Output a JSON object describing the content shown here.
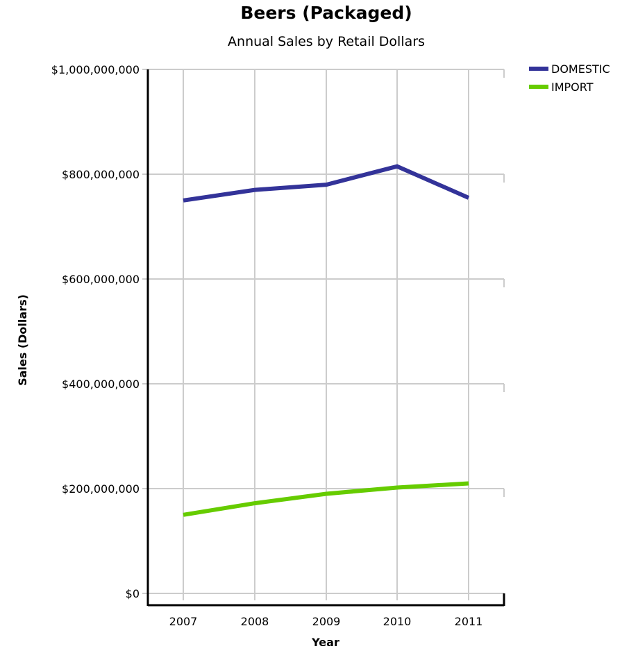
{
  "chart_data": {
    "type": "line",
    "title": "Beers (Packaged)",
    "subtitle": "Annual Sales by Retail Dollars",
    "xlabel": "Year",
    "ylabel": "Sales (Dollars)",
    "categories": [
      "2007",
      "2008",
      "2009",
      "2010",
      "2011"
    ],
    "ylim": [
      0,
      1000000000
    ],
    "yticks": [
      0,
      200000000,
      400000000,
      600000000,
      800000000,
      1000000000
    ],
    "ytick_labels": [
      "$0",
      "$200,000,000",
      "$400,000,000",
      "$600,000,000",
      "$800,000,000",
      "$1,000,000,000"
    ],
    "grid": true,
    "legend_position": "top-right",
    "series": [
      {
        "name": "DOMESTIC",
        "color": "#333399",
        "values": [
          750000000,
          770000000,
          780000000,
          815000000,
          755000000
        ]
      },
      {
        "name": "IMPORT",
        "color": "#66CC00",
        "values": [
          150000000,
          172000000,
          190000000,
          202000000,
          210000000
        ]
      }
    ]
  }
}
